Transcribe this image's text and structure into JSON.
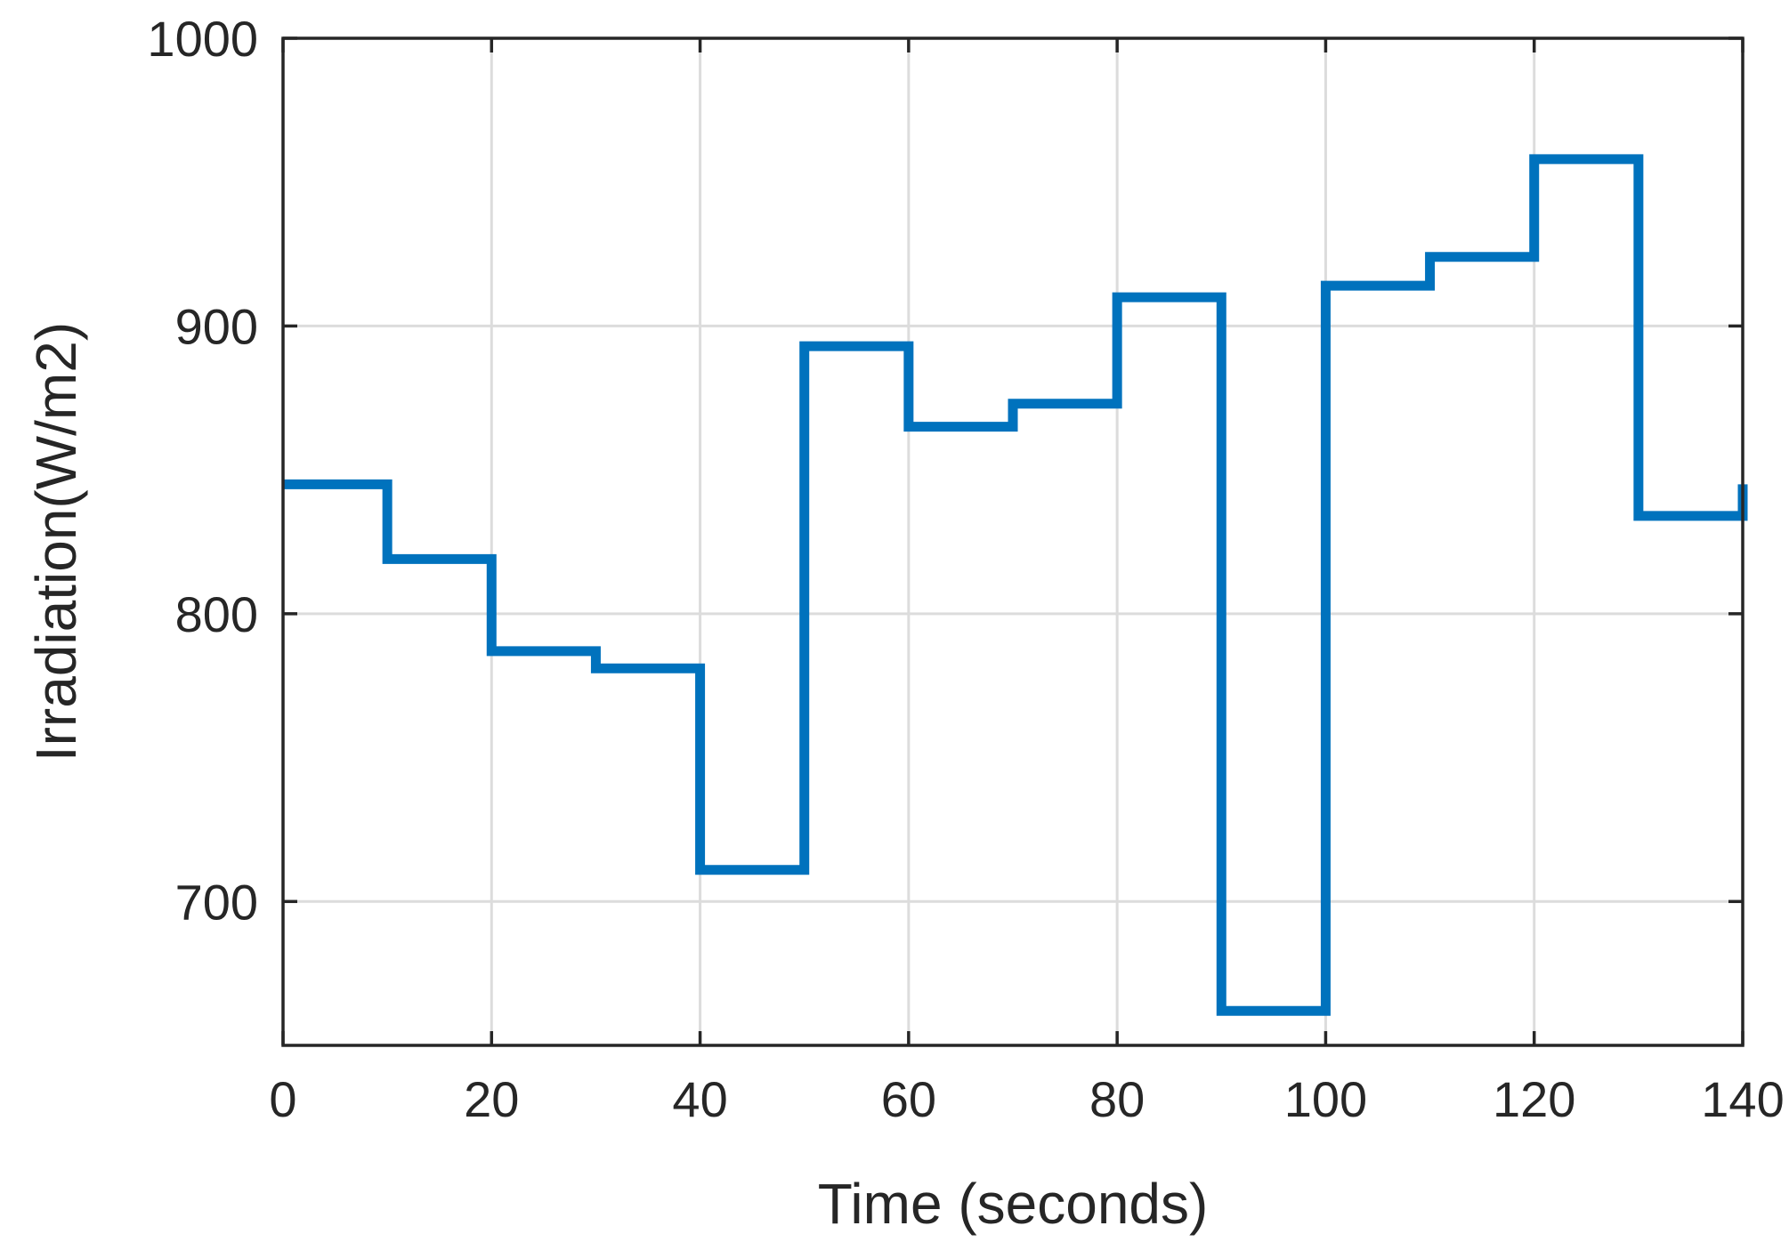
{
  "chart_data": {
    "type": "line",
    "title": "",
    "xlabel": "Time (seconds)",
    "ylabel": "Irradiation(W/m2)",
    "xlim": [
      0,
      140
    ],
    "ylim": [
      650,
      1000
    ],
    "xticks": [
      0,
      20,
      40,
      60,
      80,
      100,
      120,
      140
    ],
    "yticks": [
      700,
      800,
      900,
      1000
    ],
    "grid": true,
    "line_style": "step-post",
    "series": [
      {
        "color": "#0072BD",
        "x": [
          0,
          10,
          20,
          30,
          40,
          50,
          60,
          70,
          80,
          90,
          100,
          110,
          120,
          130,
          140
        ],
        "y": [
          845,
          819,
          787,
          781,
          711,
          893,
          865,
          873,
          910,
          662,
          914,
          924,
          958,
          834,
          845
        ]
      }
    ]
  }
}
